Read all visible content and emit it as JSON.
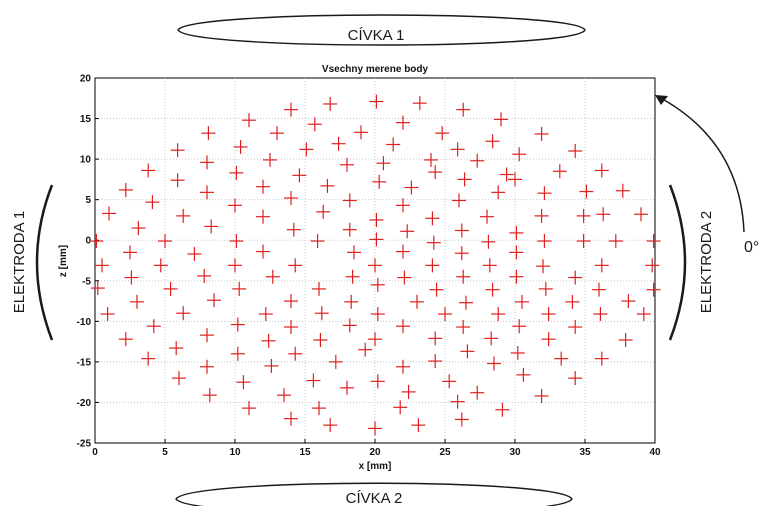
{
  "annotations": {
    "coil_top": "CÍVKA 1",
    "coil_bottom": "CÍVKA 2",
    "electrode_left": "ELEKTRODA 1",
    "electrode_right": "ELEKTRODA 2",
    "angle": "0°"
  },
  "colors": {
    "marker": "#e02020",
    "grid": "#c8c8c8",
    "axis": "#000000",
    "annotation": "#1a1a1a"
  },
  "chart_data": {
    "type": "scatter",
    "title": "Vsechny merene body",
    "xlabel": "x [mm]",
    "ylabel": "z [mm]",
    "xlim": [
      0,
      40
    ],
    "ylim": [
      -25,
      20
    ],
    "xticks": [
      0,
      5,
      10,
      15,
      20,
      25,
      30,
      35,
      40
    ],
    "yticks": [
      -25,
      -20,
      -15,
      -10,
      -5,
      0,
      5,
      10,
      15,
      20
    ],
    "grid": true,
    "marker": "plus",
    "series": [
      {
        "points": [
          [
            16.8,
            16.8
          ],
          [
            20.1,
            17.1
          ],
          [
            23.2,
            16.9
          ],
          [
            14.0,
            16.1
          ],
          [
            26.3,
            16.1
          ],
          [
            11.0,
            14.8
          ],
          [
            15.7,
            14.3
          ],
          [
            22.0,
            14.5
          ],
          [
            29.0,
            14.9
          ],
          [
            8.1,
            13.2
          ],
          [
            13.0,
            13.2
          ],
          [
            19.0,
            13.3
          ],
          [
            24.8,
            13.2
          ],
          [
            31.9,
            13.1
          ],
          [
            5.9,
            11.1
          ],
          [
            10.4,
            11.5
          ],
          [
            15.1,
            11.2
          ],
          [
            21.3,
            11.8
          ],
          [
            25.9,
            11.2
          ],
          [
            28.4,
            12.2
          ],
          [
            34.3,
            11.0
          ],
          [
            12.5,
            9.9
          ],
          [
            17.4,
            11.9
          ],
          [
            30.3,
            10.6
          ],
          [
            8.0,
            9.6
          ],
          [
            18.0,
            9.3
          ],
          [
            20.6,
            9.5
          ],
          [
            24.0,
            9.9
          ],
          [
            27.3,
            9.8
          ],
          [
            3.8,
            8.6
          ],
          [
            10.1,
            8.3
          ],
          [
            14.6,
            8.0
          ],
          [
            24.3,
            8.4
          ],
          [
            29.4,
            8.1
          ],
          [
            33.2,
            8.5
          ],
          [
            36.2,
            8.6
          ],
          [
            5.9,
            7.4
          ],
          [
            12.0,
            6.6
          ],
          [
            16.6,
            6.7
          ],
          [
            20.3,
            7.2
          ],
          [
            22.6,
            6.5
          ],
          [
            26.4,
            7.5
          ],
          [
            30.0,
            7.5
          ],
          [
            2.2,
            6.2
          ],
          [
            8.0,
            5.9
          ],
          [
            28.8,
            5.9
          ],
          [
            32.1,
            5.8
          ],
          [
            35.1,
            6.0
          ],
          [
            37.7,
            6.1
          ],
          [
            4.1,
            4.7
          ],
          [
            10.0,
            4.3
          ],
          [
            14.0,
            5.2
          ],
          [
            18.2,
            4.9
          ],
          [
            22.0,
            4.3
          ],
          [
            26.0,
            4.9
          ],
          [
            1.0,
            3.3
          ],
          [
            6.3,
            3.0
          ],
          [
            12.0,
            2.9
          ],
          [
            16.3,
            3.5
          ],
          [
            20.1,
            2.5
          ],
          [
            24.1,
            2.7
          ],
          [
            28.0,
            2.9
          ],
          [
            31.9,
            3.0
          ],
          [
            34.9,
            3.0
          ],
          [
            36.3,
            3.2
          ],
          [
            39.0,
            3.2
          ],
          [
            3.1,
            1.5
          ],
          [
            8.3,
            1.7
          ],
          [
            14.2,
            1.3
          ],
          [
            18.2,
            1.3
          ],
          [
            22.3,
            1.1
          ],
          [
            26.2,
            1.2
          ],
          [
            30.1,
            0.9
          ],
          [
            0.1,
            -0.1
          ],
          [
            5.0,
            -0.1
          ],
          [
            10.1,
            -0.1
          ],
          [
            15.9,
            -0.1
          ],
          [
            20.1,
            0.1
          ],
          [
            24.2,
            -0.3
          ],
          [
            28.1,
            -0.2
          ],
          [
            32.1,
            -0.1
          ],
          [
            34.9,
            -0.1
          ],
          [
            37.2,
            -0.1
          ],
          [
            39.9,
            -0.1
          ],
          [
            2.5,
            -1.5
          ],
          [
            7.1,
            -1.7
          ],
          [
            12.0,
            -1.4
          ],
          [
            18.5,
            -1.5
          ],
          [
            22.0,
            -1.4
          ],
          [
            26.2,
            -1.6
          ],
          [
            30.1,
            -1.5
          ],
          [
            0.5,
            -3.1
          ],
          [
            4.7,
            -3.1
          ],
          [
            10.0,
            -3.1
          ],
          [
            14.3,
            -3.1
          ],
          [
            20.0,
            -3.1
          ],
          [
            24.1,
            -3.1
          ],
          [
            28.2,
            -3.1
          ],
          [
            32.0,
            -3.2
          ],
          [
            36.2,
            -3.1
          ],
          [
            39.8,
            -3.1
          ],
          [
            2.6,
            -4.6
          ],
          [
            7.8,
            -4.4
          ],
          [
            12.7,
            -4.5
          ],
          [
            18.4,
            -4.5
          ],
          [
            22.1,
            -4.6
          ],
          [
            26.3,
            -4.5
          ],
          [
            30.1,
            -4.5
          ],
          [
            34.3,
            -4.6
          ],
          [
            0.2,
            -5.9
          ],
          [
            5.4,
            -6.0
          ],
          [
            10.3,
            -6.0
          ],
          [
            16.0,
            -6.0
          ],
          [
            20.2,
            -5.5
          ],
          [
            24.4,
            -6.1
          ],
          [
            28.4,
            -6.1
          ],
          [
            32.2,
            -6.0
          ],
          [
            36.0,
            -6.1
          ],
          [
            39.9,
            -6.1
          ],
          [
            3.0,
            -7.6
          ],
          [
            8.5,
            -7.4
          ],
          [
            14.0,
            -7.5
          ],
          [
            18.3,
            -7.6
          ],
          [
            23.0,
            -7.6
          ],
          [
            26.5,
            -7.7
          ],
          [
            30.5,
            -7.6
          ],
          [
            34.1,
            -7.6
          ],
          [
            38.1,
            -7.5
          ],
          [
            0.9,
            -9.1
          ],
          [
            6.3,
            -9.0
          ],
          [
            12.2,
            -9.1
          ],
          [
            16.2,
            -9.0
          ],
          [
            20.2,
            -9.1
          ],
          [
            25.0,
            -9.1
          ],
          [
            28.8,
            -9.1
          ],
          [
            32.4,
            -9.1
          ],
          [
            36.1,
            -9.1
          ],
          [
            39.2,
            -9.1
          ],
          [
            4.2,
            -10.6
          ],
          [
            10.2,
            -10.4
          ],
          [
            14.0,
            -10.7
          ],
          [
            18.2,
            -10.5
          ],
          [
            22.0,
            -10.6
          ],
          [
            26.3,
            -10.7
          ],
          [
            30.3,
            -10.6
          ],
          [
            34.3,
            -10.7
          ],
          [
            2.2,
            -12.2
          ],
          [
            8.0,
            -11.7
          ],
          [
            12.4,
            -12.4
          ],
          [
            16.1,
            -12.3
          ],
          [
            20.0,
            -12.2
          ],
          [
            24.3,
            -12.1
          ],
          [
            28.3,
            -12.1
          ],
          [
            32.4,
            -12.2
          ],
          [
            37.9,
            -12.3
          ],
          [
            5.8,
            -13.3
          ],
          [
            10.2,
            -14.0
          ],
          [
            14.3,
            -14.0
          ],
          [
            19.3,
            -13.5
          ],
          [
            26.6,
            -13.7
          ],
          [
            30.2,
            -13.9
          ],
          [
            3.8,
            -14.6
          ],
          [
            8.0,
            -15.6
          ],
          [
            12.6,
            -15.5
          ],
          [
            17.2,
            -15.0
          ],
          [
            22.0,
            -15.6
          ],
          [
            24.3,
            -14.9
          ],
          [
            28.5,
            -15.2
          ],
          [
            33.3,
            -14.6
          ],
          [
            36.2,
            -14.6
          ],
          [
            6.0,
            -17.0
          ],
          [
            10.6,
            -17.5
          ],
          [
            15.6,
            -17.3
          ],
          [
            20.2,
            -17.4
          ],
          [
            25.3,
            -17.4
          ],
          [
            30.6,
            -16.6
          ],
          [
            34.3,
            -17.0
          ],
          [
            8.2,
            -19.1
          ],
          [
            13.5,
            -19.1
          ],
          [
            18.0,
            -18.2
          ],
          [
            22.4,
            -18.7
          ],
          [
            27.3,
            -18.8
          ],
          [
            31.9,
            -19.2
          ],
          [
            11.0,
            -20.7
          ],
          [
            16.0,
            -20.7
          ],
          [
            21.8,
            -20.6
          ],
          [
            25.9,
            -19.9
          ],
          [
            29.1,
            -20.9
          ],
          [
            14.0,
            -22.0
          ],
          [
            16.8,
            -22.8
          ],
          [
            20.0,
            -23.2
          ],
          [
            23.1,
            -22.8
          ],
          [
            26.2,
            -22.1
          ]
        ]
      }
    ]
  }
}
